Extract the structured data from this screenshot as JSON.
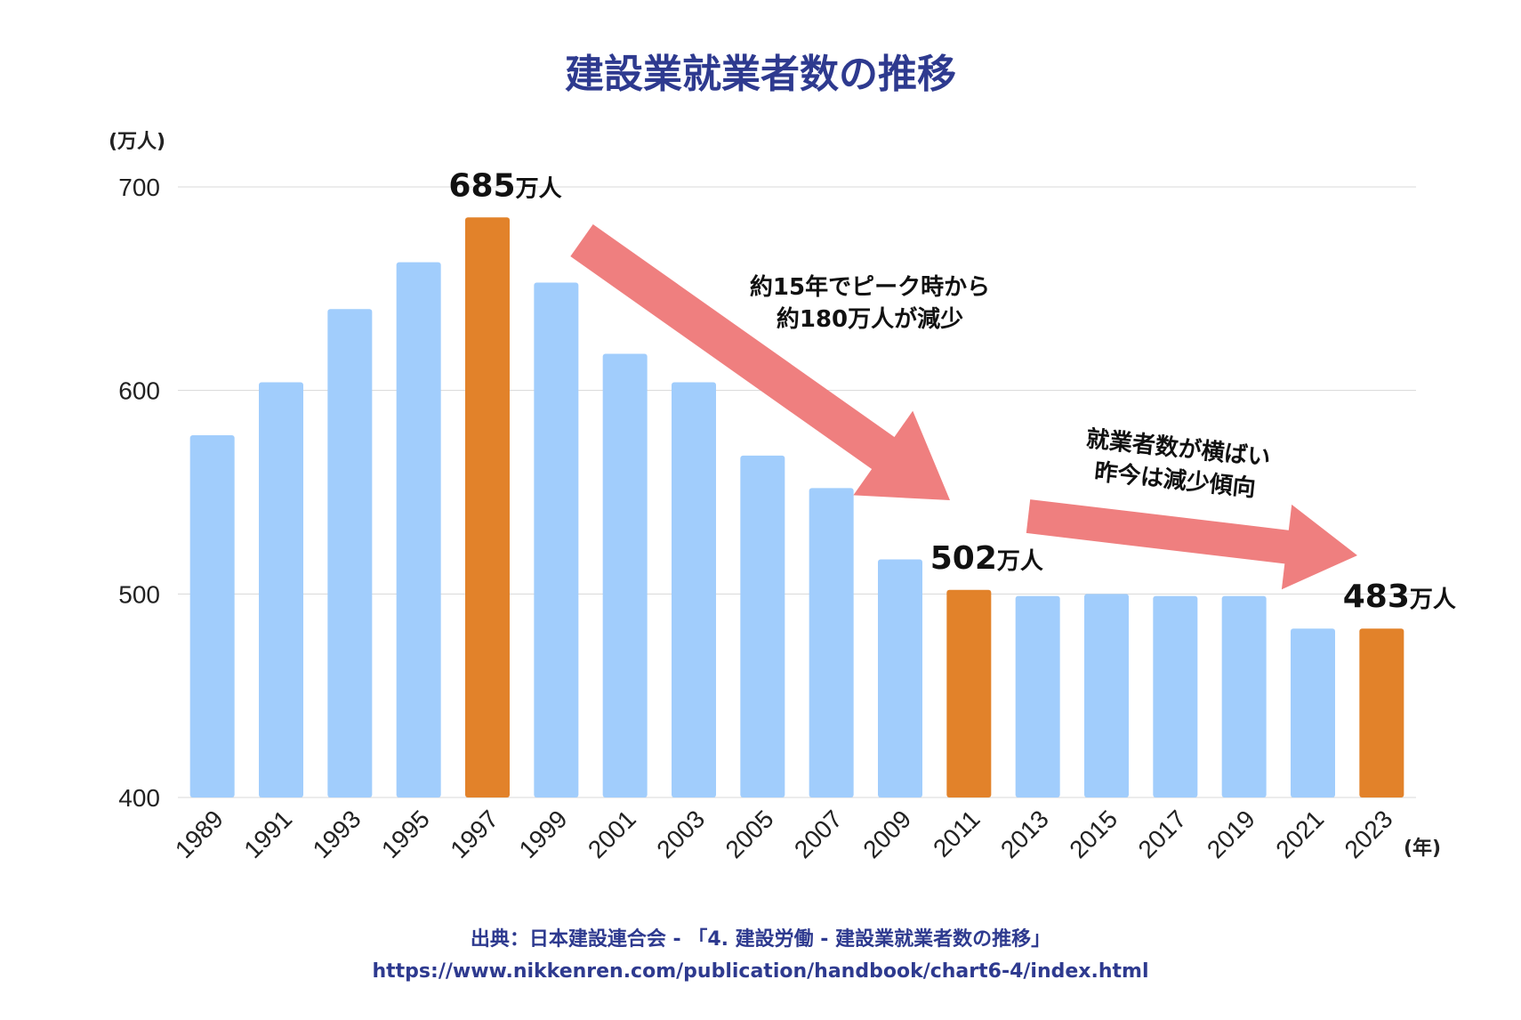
{
  "colors": {
    "bar": "#a1cdfc",
    "highlight": "#e2822a",
    "arrow": "#ef7f7f",
    "grid": "#d8d8d8",
    "title": "#2e3a8f"
  },
  "chart_data": {
    "type": "bar",
    "title": "建設業就業者数の推移",
    "ylabel": "(万人)",
    "xlabel": "(年)",
    "ylim": [
      400,
      700
    ],
    "yticks": [
      "400",
      "500",
      "600",
      "700"
    ],
    "categories": [
      "1989",
      "1991",
      "1993",
      "1995",
      "1997",
      "1999",
      "2001",
      "2003",
      "2005",
      "2007",
      "2009",
      "2011",
      "2013",
      "2015",
      "2017",
      "2019",
      "2021",
      "2023"
    ],
    "values": [
      578,
      604,
      640,
      663,
      685,
      653,
      618,
      604,
      568,
      552,
      517,
      502,
      499,
      500,
      499,
      499,
      483,
      483
    ],
    "highlighted": [
      "1997",
      "2011",
      "2023"
    ],
    "data_labels": [
      {
        "category": "1997",
        "value": "685",
        "unit": "万人"
      },
      {
        "category": "2011",
        "value": "502",
        "unit": "万人"
      },
      {
        "category": "2023",
        "value": "483",
        "unit": "万人"
      }
    ],
    "annotations": [
      {
        "lines": [
          "約15年でピーク時から",
          "約180万人が減少"
        ]
      },
      {
        "lines": [
          "就業者数が横ばい",
          "昨今は減少傾向"
        ]
      }
    ]
  },
  "source": {
    "line1": "出典：日本建設連合会 - 「4. 建設労働 - 建設業就業者数の推移」",
    "line2": "https://www.nikkenren.com/publication/handbook/chart6-4/index.html"
  }
}
